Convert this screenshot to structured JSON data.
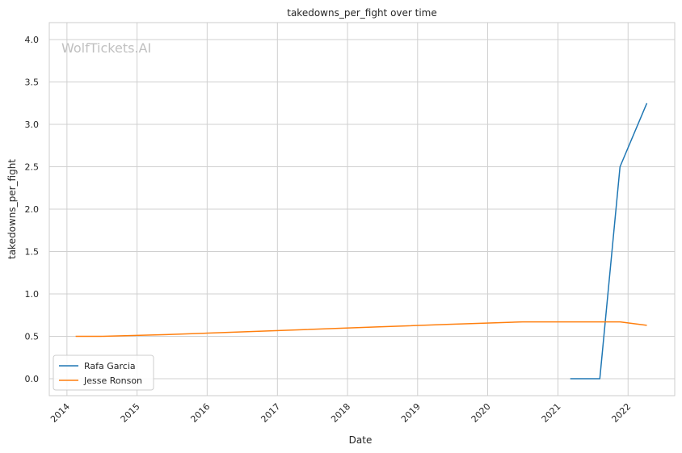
{
  "chart_data": {
    "type": "line",
    "title": "takedowns_per_fight over time",
    "xlabel": "Date",
    "ylabel": "takedowns_per_fight",
    "watermark": "WolfTickets.AI",
    "x_ticks": [
      "2014",
      "2015",
      "2016",
      "2017",
      "2018",
      "2019",
      "2020",
      "2021",
      "2022"
    ],
    "y_ticks": [
      "0.0",
      "0.5",
      "1.0",
      "1.5",
      "2.0",
      "2.5",
      "3.0",
      "3.5",
      "4.0"
    ],
    "xlim": [
      "2013-10-01",
      "2022-09-01"
    ],
    "ylim": [
      -0.2,
      4.2
    ],
    "grid": true,
    "legend_position": "lower-left",
    "series": [
      {
        "name": "Rafa Garcia",
        "color": "#1f77b4",
        "points": [
          {
            "x": "2021-03-06",
            "y": 0.0
          },
          {
            "x": "2021-08-07",
            "y": 0.0
          },
          {
            "x": "2021-11-20",
            "y": 2.5
          },
          {
            "x": "2022-04-09",
            "y": 3.25
          }
        ]
      },
      {
        "name": "Jesse Ronson",
        "color": "#ff7f0e",
        "points": [
          {
            "x": "2014-02-15",
            "y": 0.5
          },
          {
            "x": "2014-06-28",
            "y": 0.5
          },
          {
            "x": "2015-06-01",
            "y": 0.52
          },
          {
            "x": "2016-06-01",
            "y": 0.55
          },
          {
            "x": "2017-06-01",
            "y": 0.58
          },
          {
            "x": "2018-06-01",
            "y": 0.61
          },
          {
            "x": "2019-06-01",
            "y": 0.64
          },
          {
            "x": "2020-07-01",
            "y": 0.67
          },
          {
            "x": "2021-11-20",
            "y": 0.67
          },
          {
            "x": "2022-04-09",
            "y": 0.63
          }
        ]
      }
    ]
  }
}
